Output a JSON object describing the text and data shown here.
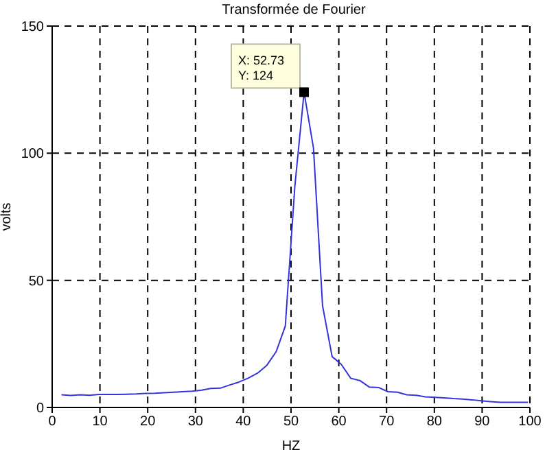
{
  "chart_data": {
    "type": "line",
    "title": "Transformée de Fourier",
    "xlabel": "HZ",
    "ylabel": "volts",
    "x": [
      1.95,
      3.9,
      5.86,
      7.81,
      9.77,
      11.7,
      13.7,
      15.6,
      17.6,
      19.5,
      21.5,
      23.4,
      25.4,
      27.3,
      29.3,
      31.3,
      33.2,
      35.2,
      37.1,
      39.1,
      41,
      43,
      44.9,
      46.9,
      48.8,
      50.8,
      52.73,
      54.7,
      56.6,
      58.6,
      60.5,
      62.5,
      64.5,
      66.4,
      68.4,
      70.3,
      72.3,
      74.2,
      76.2,
      78.1,
      80.1,
      82,
      84,
      85.9,
      87.9,
      89.8,
      91.8,
      93.8,
      95.7,
      97.7,
      99.6
    ],
    "series": [
      {
        "color": "#3333dd",
        "values": [
          5,
          4.7,
          5,
          4.8,
          5.1,
          5.1,
          5.1,
          5.2,
          5.3,
          5.5,
          5.6,
          5.8,
          6,
          6.2,
          6.4,
          6.8,
          7.5,
          7.6,
          8.8,
          10,
          11.5,
          13.5,
          16.5,
          22,
          32,
          87,
          124,
          102,
          40,
          20,
          17,
          11.5,
          10.5,
          8,
          7.8,
          6.2,
          6,
          5,
          4.8,
          4.2,
          4,
          3.8,
          3.5,
          3.3,
          3,
          2.6,
          2.3,
          2,
          2,
          2,
          2
        ]
      }
    ],
    "annotations": [
      {
        "text": "X: 52.73\nY: 124",
        "x": 52.73,
        "y": 124
      }
    ],
    "xlim": [
      0,
      100
    ],
    "xticks": [
      0,
      10,
      20,
      30,
      40,
      50,
      60,
      70,
      80,
      90,
      100
    ],
    "ylim": [
      0,
      150
    ],
    "yticks": [
      0,
      50,
      100,
      150
    ],
    "grid": true,
    "line_style": "solid",
    "marker": "none",
    "legend": false
  }
}
